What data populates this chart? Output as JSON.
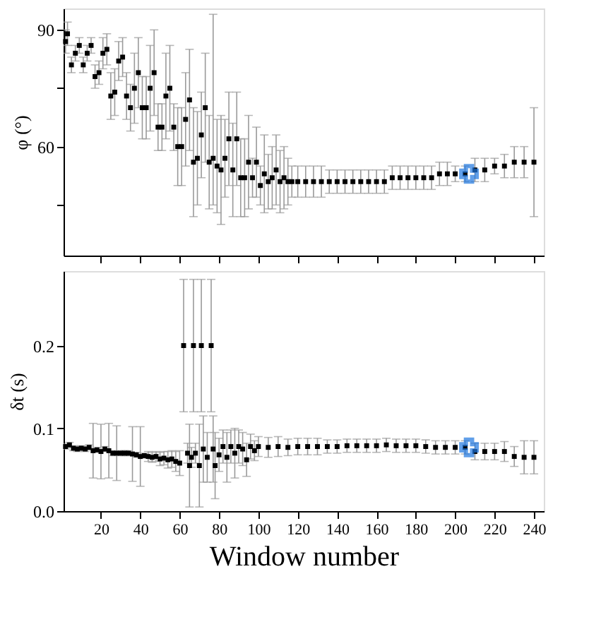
{
  "chart_data": [
    {
      "type": "scatter",
      "ylabel": "φ (°)",
      "xlim": [
        1,
        245
      ],
      "ylim": [
        32,
        95.5
      ],
      "xticks": [
        20,
        40,
        60,
        80,
        100,
        120,
        140,
        160,
        180,
        200,
        220,
        240
      ],
      "yticks": [
        {
          "value": 45,
          "label": null
        },
        60,
        {
          "value": 75,
          "label": null
        },
        90
      ],
      "tick_labels": "y",
      "grid": false,
      "series": [
        {
          "color": "#000000",
          "marker": "square",
          "x": [
            2,
            3,
            5,
            7,
            9,
            11,
            13,
            15,
            17,
            19,
            21,
            23,
            25,
            27,
            29,
            31,
            33,
            35,
            37,
            39,
            41,
            43,
            45,
            47,
            49,
            51,
            53,
            55,
            57,
            59,
            61,
            63,
            65,
            67,
            69,
            71,
            73,
            75,
            77,
            79,
            81,
            83,
            85,
            87,
            89,
            91,
            93,
            95,
            97,
            99,
            101,
            103,
            105,
            107,
            109,
            111,
            113,
            115,
            117,
            120,
            124,
            128,
            132,
            136,
            140,
            144,
            148,
            152,
            156,
            160,
            164,
            168,
            172,
            176,
            180,
            184,
            188,
            192,
            196,
            200,
            205,
            210,
            215,
            220,
            225,
            230,
            235,
            240
          ],
          "values": [
            87,
            89,
            81,
            84,
            86,
            81,
            84,
            86,
            78,
            79,
            84,
            85,
            73,
            74,
            82,
            83,
            73,
            70,
            75,
            79,
            70,
            70,
            75,
            79,
            65,
            65,
            73,
            75,
            65,
            60,
            60,
            67,
            72,
            56,
            57,
            63,
            70,
            56,
            57,
            55,
            54,
            57,
            62,
            54,
            62,
            52,
            52,
            56,
            52,
            56,
            50,
            53,
            51,
            52,
            54,
            51,
            52,
            51,
            51,
            51,
            51,
            51,
            51,
            51,
            51,
            51,
            51,
            51,
            51,
            51,
            51,
            52,
            52,
            52,
            52,
            52,
            52,
            53,
            53,
            53,
            53,
            54,
            54,
            55,
            55,
            56,
            56,
            56
          ],
          "errors": [
            3,
            3,
            2,
            2,
            2,
            2,
            2,
            2,
            3,
            3,
            4,
            4,
            6,
            6,
            5,
            5,
            6,
            6,
            9,
            9,
            8,
            8,
            11,
            11,
            6,
            6,
            11,
            11,
            6,
            10,
            10,
            12,
            13,
            14,
            12,
            11,
            14,
            12,
            [
              45,
              94
            ],
            12,
            14,
            10,
            12,
            12,
            12,
            10,
            10,
            12,
            5,
            9,
            5,
            10,
            7,
            8,
            9,
            8,
            8,
            6,
            4,
            4,
            4,
            4,
            4,
            3,
            3,
            3,
            3,
            3,
            3,
            3,
            3,
            3,
            3,
            3,
            3,
            3,
            3,
            3,
            3,
            2,
            2,
            3,
            3,
            2,
            3,
            4,
            4,
            14
          ]
        },
        {
          "color": "#1f77e0",
          "marker": "cross",
          "x": [
            207
          ],
          "values": [
            53
          ]
        }
      ]
    },
    {
      "type": "scatter",
      "ylabel": "δt (s)",
      "xlabel": "Window number",
      "xlim": [
        1,
        245
      ],
      "ylim": [
        0,
        0.29
      ],
      "xticks": [
        20,
        40,
        60,
        80,
        100,
        120,
        140,
        160,
        180,
        200,
        220,
        240
      ],
      "yticks": [
        {
          "value": 0,
          "label": "0.0"
        },
        0.1,
        0.2
      ],
      "grid": false,
      "series": [
        {
          "color": "#000000",
          "marker": "square",
          "x": [
            2,
            4,
            6,
            8,
            10,
            12,
            14,
            16,
            18,
            20,
            22,
            24,
            26,
            28,
            30,
            32,
            34,
            36,
            38,
            40,
            42,
            44,
            46,
            48,
            50,
            52,
            54,
            56,
            58,
            60,
            62,
            64,
            65,
            66,
            67,
            68,
            70,
            71,
            72,
            74,
            76,
            77,
            78,
            80,
            82,
            84,
            86,
            88,
            90,
            92,
            94,
            96,
            98,
            100,
            105,
            110,
            115,
            120,
            125,
            130,
            135,
            140,
            145,
            150,
            155,
            160,
            165,
            170,
            175,
            180,
            185,
            190,
            195,
            200,
            205,
            210,
            215,
            220,
            225,
            230,
            235,
            240
          ],
          "values": [
            0.078,
            0.08,
            0.076,
            0.075,
            0.076,
            0.075,
            0.077,
            0.073,
            0.074,
            0.072,
            0.075,
            0.073,
            0.07,
            0.07,
            0.07,
            0.07,
            0.07,
            0.069,
            0.068,
            0.066,
            0.067,
            0.066,
            0.065,
            0.066,
            0.063,
            0.064,
            0.062,
            0.063,
            0.06,
            0.058,
            0.2,
            0.07,
            0.055,
            0.065,
            0.2,
            0.07,
            0.055,
            0.2,
            0.075,
            0.065,
            0.2,
            0.075,
            0.055,
            0.068,
            0.078,
            0.065,
            0.078,
            0.07,
            0.078,
            0.075,
            0.062,
            0.078,
            0.073,
            0.078,
            0.077,
            0.078,
            0.077,
            0.078,
            0.078,
            0.078,
            0.078,
            0.078,
            0.079,
            0.079,
            0.079,
            0.079,
            0.08,
            0.079,
            0.079,
            0.079,
            0.078,
            0.077,
            0.077,
            0.077,
            0.077,
            0.072,
            0.072,
            0.072,
            0.072,
            0.066,
            0.065,
            0.065
          ],
          "errors": [
            0.003,
            0.003,
            0.003,
            0.003,
            0.003,
            0.003,
            0.003,
            0.033,
            0.003,
            0.033,
            0.003,
            0.033,
            0.003,
            0.033,
            0.003,
            0.003,
            0.003,
            0.033,
            0.003,
            0.036,
            0.003,
            0.006,
            0.006,
            0.006,
            0.008,
            0.008,
            0.01,
            0.01,
            0.012,
            0.015,
            0.08,
            0.012,
            0.05,
            0.012,
            0.08,
            0.012,
            0.05,
            0.08,
            0.04,
            0.03,
            0.08,
            0.04,
            0.04,
            0.02,
            0.02,
            0.03,
            0.02,
            0.03,
            0.02,
            0.02,
            0.02,
            0.015,
            0.012,
            0.012,
            0.012,
            0.012,
            0.01,
            0.01,
            0.01,
            0.01,
            0.008,
            0.008,
            0.008,
            0.008,
            0.008,
            0.008,
            0.008,
            0.008,
            0.008,
            0.008,
            0.008,
            0.008,
            0.008,
            0.008,
            0.008,
            0.01,
            0.01,
            0.01,
            0.012,
            0.012,
            0.02,
            0.02
          ]
        },
        {
          "color": "#1f77e0",
          "marker": "cross",
          "x": [
            207
          ],
          "values": [
            0.077
          ]
        }
      ]
    }
  ]
}
